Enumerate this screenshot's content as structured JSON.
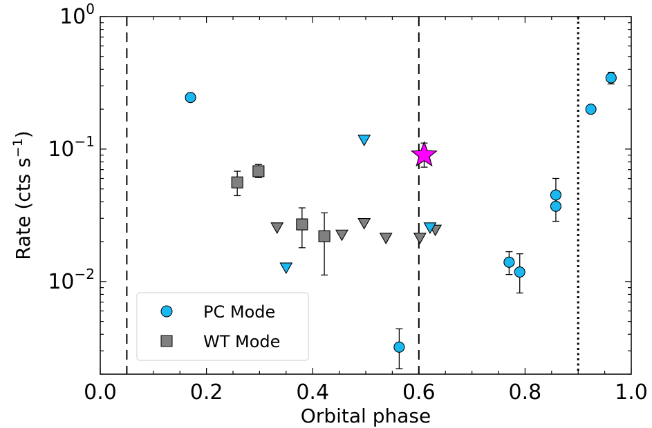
{
  "chart_data": {
    "type": "scatter",
    "xlabel": "Orbital phase",
    "ylabel": "Rate (cts s",
    "ylabel_sup": "−1",
    "ylabel_end": ")",
    "xlim": [
      0.0,
      1.0
    ],
    "ylim": [
      0.002,
      1.0
    ],
    "yscale": "log",
    "x_ticks": [
      "0.0",
      "0.2",
      "0.4",
      "0.6",
      "0.8",
      "1.0"
    ],
    "y_ticks": [
      {
        "base": "10",
        "exp": "0",
        "value": 1.0
      },
      {
        "base": "10",
        "exp": "−1",
        "value": 0.1
      },
      {
        "base": "10",
        "exp": "−2",
        "value": 0.01
      }
    ],
    "vlines": [
      {
        "x": 0.05,
        "style": "dashed"
      },
      {
        "x": 0.6,
        "style": "dashed"
      },
      {
        "x": 0.9,
        "style": "dotted"
      }
    ],
    "legend": {
      "placement": "lower-left",
      "entries": [
        {
          "label": "PC Mode",
          "marker": "circle",
          "color": "#1ab8f0"
        },
        {
          "label": "WT Mode",
          "marker": "square",
          "color": "#808080"
        }
      ]
    },
    "series": [
      {
        "marker": "circle",
        "color": "#1ab8f0",
        "points": [
          {
            "x": 0.17,
            "y": 0.245
          },
          {
            "x": 0.563,
            "y": 0.0032,
            "ylo": 0.0022,
            "yhi": 0.0044
          },
          {
            "x": 0.77,
            "y": 0.014,
            "ylo": 0.0113,
            "yhi": 0.0168
          },
          {
            "x": 0.79,
            "y": 0.0118,
            "ylo": 0.0082,
            "yhi": 0.0162
          },
          {
            "x": 0.858,
            "y": 0.045,
            "ylo": 0.0345,
            "yhi": 0.06
          },
          {
            "x": 0.858,
            "y": 0.037,
            "ylo": 0.0285,
            "yhi": 0.0475
          },
          {
            "x": 0.924,
            "y": 0.2
          },
          {
            "x": 0.962,
            "y": 0.345,
            "ylo": 0.31,
            "yhi": 0.38
          }
        ]
      },
      {
        "marker": "square",
        "color": "#808080",
        "points": [
          {
            "x": 0.258,
            "y": 0.056,
            "ylo": 0.0445,
            "yhi": 0.068
          },
          {
            "x": 0.298,
            "y": 0.068,
            "ylo": 0.061,
            "yhi": 0.0765
          },
          {
            "x": 0.38,
            "y": 0.027,
            "ylo": 0.018,
            "yhi": 0.036
          },
          {
            "x": 0.422,
            "y": 0.022,
            "ylo": 0.0112,
            "yhi": 0.033
          }
        ]
      },
      {
        "marker": "triangle-down",
        "color": "#808080",
        "points": [
          {
            "x": 0.333,
            "y": 0.0255
          },
          {
            "x": 0.455,
            "y": 0.0225
          },
          {
            "x": 0.497,
            "y": 0.0275
          },
          {
            "x": 0.538,
            "y": 0.0213
          },
          {
            "x": 0.602,
            "y": 0.0213
          },
          {
            "x": 0.631,
            "y": 0.0245
          }
        ]
      },
      {
        "marker": "triangle-down",
        "color": "#1ab8f0",
        "points": [
          {
            "x": 0.35,
            "y": 0.0127
          },
          {
            "x": 0.497,
            "y": 0.117
          },
          {
            "x": 0.621,
            "y": 0.0255
          }
        ]
      },
      {
        "marker": "star",
        "color": "#ff00ff",
        "points": [
          {
            "x": 0.61,
            "y": 0.09,
            "ylo": 0.073,
            "yhi": 0.111
          }
        ]
      }
    ]
  }
}
